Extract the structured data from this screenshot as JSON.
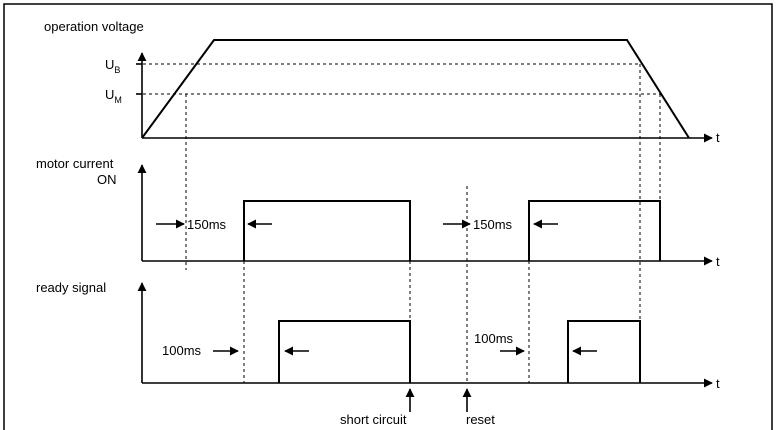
{
  "labels": {
    "operation_voltage": "operation voltage",
    "ub_main": "U",
    "ub_sub": "B",
    "um_main": "U",
    "um_sub": "M",
    "t": "t",
    "motor_current_line1": "motor current",
    "motor_current_line2": "ON",
    "ready_signal": "ready signal",
    "delay_150_first": "150ms",
    "delay_150_second": "150ms",
    "delay_100_first": "100ms",
    "delay_100_second": "100ms",
    "short_circuit": "short circuit",
    "reset": "reset"
  }
}
